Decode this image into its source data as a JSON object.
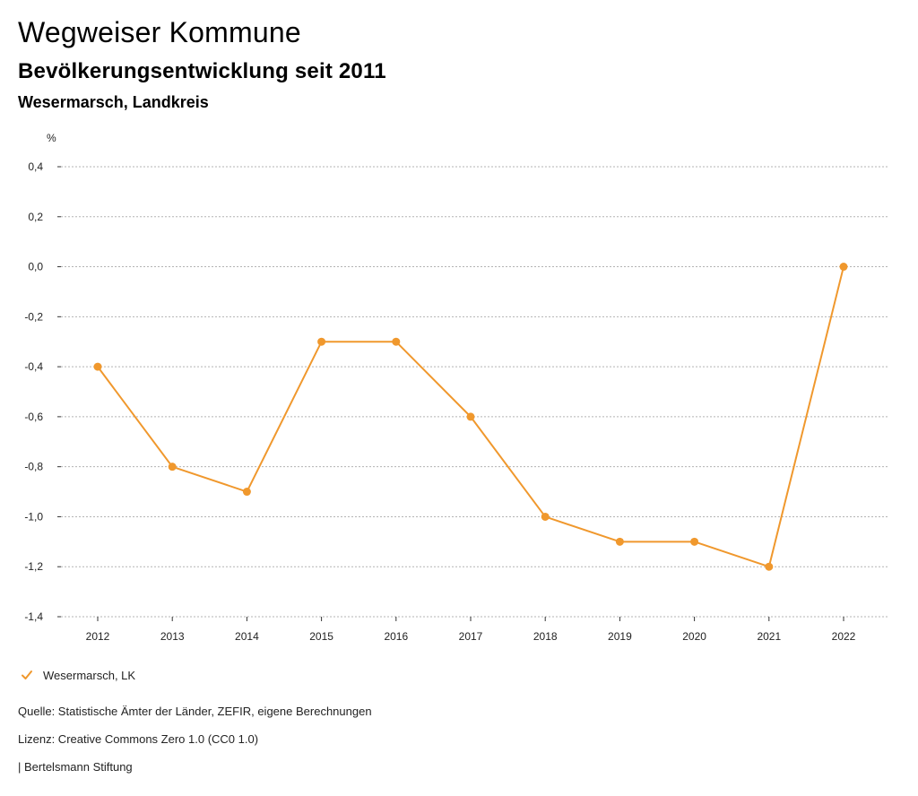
{
  "header": {
    "title": "Wegweiser Kommune",
    "subtitle": "Bevölkerungsentwicklung seit 2011",
    "region": "Wesermarsch, Landkreis"
  },
  "chart_data": {
    "type": "line",
    "title": "Bevölkerungsentwicklung seit 2011",
    "xlabel": "",
    "ylabel": "%",
    "categories": [
      "2012",
      "2013",
      "2014",
      "2015",
      "2016",
      "2017",
      "2018",
      "2019",
      "2020",
      "2021",
      "2022"
    ],
    "series": [
      {
        "name": "Wesermarsch, LK",
        "values": [
          -0.4,
          -0.8,
          -0.9,
          -0.3,
          -0.3,
          -0.6,
          -1.0,
          -1.1,
          -1.1,
          -1.2,
          0.0
        ],
        "color": "#f0982d"
      }
    ],
    "yticks": [
      "0,4",
      "0,2",
      "0,0",
      "-0,2",
      "-0,4",
      "-0,6",
      "-0,8",
      "-1,0",
      "-1,2",
      "-1,4"
    ],
    "ylim": [
      -1.4,
      0.4
    ],
    "grid": true,
    "legend_position": "bottom-left"
  },
  "legend": {
    "label": "Wesermarsch, LK",
    "icon": "check-icon"
  },
  "footer": {
    "source": "Quelle: Statistische Ämter der Länder, ZEFIR, eigene Berechnungen",
    "license": "Lizenz: Creative Commons Zero 1.0 (CC0 1.0)",
    "credit": "| Bertelsmann Stiftung"
  },
  "colors": {
    "series": "#f0982d",
    "grid": "#b3b3b3",
    "axis": "#333333"
  }
}
